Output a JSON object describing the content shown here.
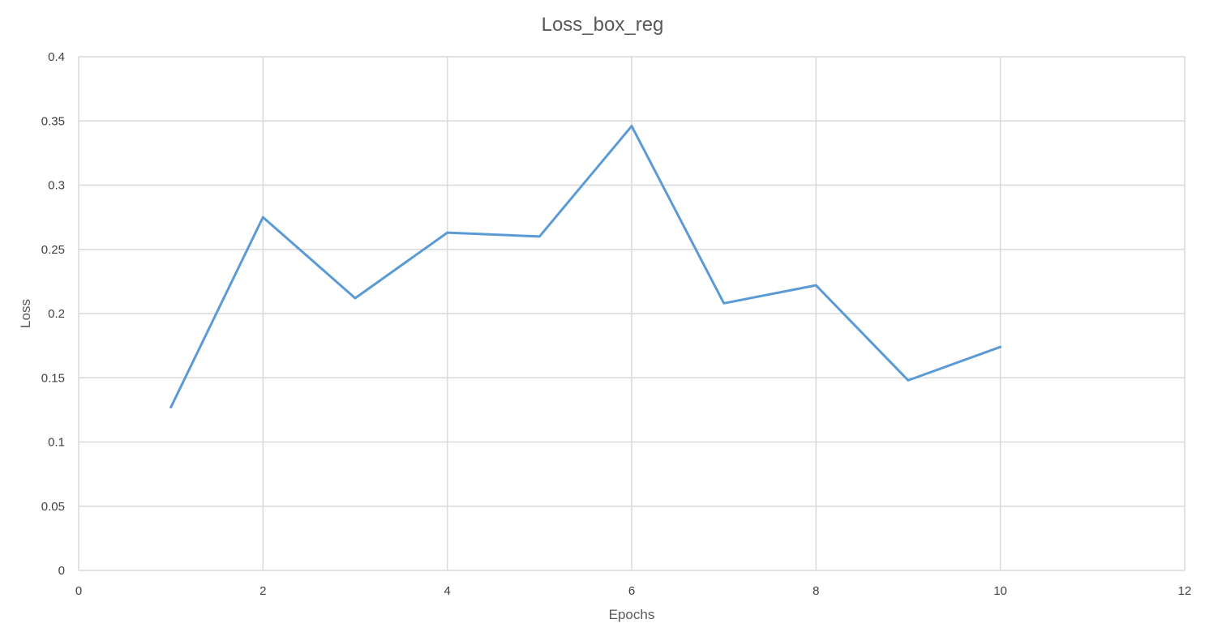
{
  "chart_data": {
    "type": "scatter",
    "title": "Loss_box_reg",
    "xlabel": "Epochs",
    "ylabel": "Loss",
    "xlim": [
      0,
      12
    ],
    "ylim": [
      0,
      0.4
    ],
    "xticks": [
      "0",
      "2",
      "4",
      "6",
      "8",
      "10",
      "12"
    ],
    "yticks": [
      "0",
      "0.05",
      "0.1",
      "0.15",
      "0.2",
      "0.25",
      "0.3",
      "0.35",
      "0.4"
    ],
    "grid": true,
    "legend": "none",
    "series": [
      {
        "color": "#5b9bd5",
        "x": [
          1,
          2,
          3,
          4,
          5,
          6,
          7,
          8,
          9,
          10
        ],
        "y": [
          0.127,
          0.275,
          0.212,
          0.263,
          0.26,
          0.346,
          0.208,
          0.222,
          0.148,
          0.174
        ]
      }
    ]
  }
}
